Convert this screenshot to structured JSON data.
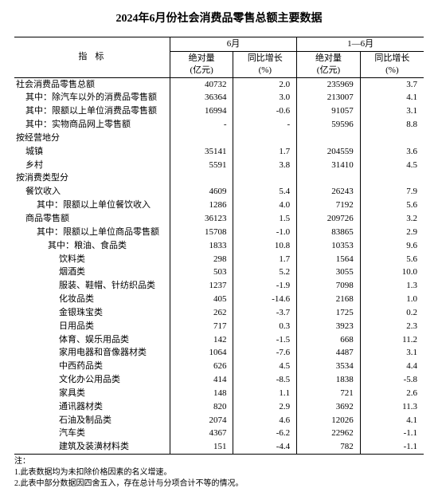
{
  "title": "2024年6月份社会消费品零售总额主要数据",
  "headers": {
    "indicator": "指标",
    "period1": "6月",
    "period2": "1—6月",
    "abs_label": "绝对量",
    "abs_unit": "(亿元)",
    "growth_label": "同比增长",
    "growth_unit": "(%)"
  },
  "rows": [
    {
      "indent": 0,
      "label": "社会消费品零售总额",
      "v1": "40732",
      "g1": "2.0",
      "v2": "235969",
      "g2": "3.7"
    },
    {
      "indent": 1,
      "label": "其中：除汽车以外的消费品零售额",
      "v1": "36364",
      "g1": "3.0",
      "v2": "213007",
      "g2": "4.1"
    },
    {
      "indent": 1,
      "label": "其中：限额以上单位消费品零售额",
      "v1": "16994",
      "g1": "-0.6",
      "v2": "91057",
      "g2": "3.1"
    },
    {
      "indent": 1,
      "label": "其中：实物商品网上零售额",
      "v1": "-",
      "g1": "-",
      "v2": "59596",
      "g2": "8.8"
    },
    {
      "indent": 0,
      "label": "按经营地分",
      "v1": "",
      "g1": "",
      "v2": "",
      "g2": ""
    },
    {
      "indent": 1,
      "label": "城镇",
      "v1": "35141",
      "g1": "1.7",
      "v2": "204559",
      "g2": "3.6"
    },
    {
      "indent": 1,
      "label": "乡村",
      "v1": "5591",
      "g1": "3.8",
      "v2": "31410",
      "g2": "4.5"
    },
    {
      "indent": 0,
      "label": "按消费类型分",
      "v1": "",
      "g1": "",
      "v2": "",
      "g2": ""
    },
    {
      "indent": 1,
      "label": "餐饮收入",
      "v1": "4609",
      "g1": "5.4",
      "v2": "26243",
      "g2": "7.9"
    },
    {
      "indent": 2,
      "label": "其中：限额以上单位餐饮收入",
      "v1": "1286",
      "g1": "4.0",
      "v2": "7192",
      "g2": "5.6"
    },
    {
      "indent": 1,
      "label": "商品零售额",
      "v1": "36123",
      "g1": "1.5",
      "v2": "209726",
      "g2": "3.2"
    },
    {
      "indent": 2,
      "label": "其中：限额以上单位商品零售额",
      "v1": "15708",
      "g1": "-1.0",
      "v2": "83865",
      "g2": "2.9"
    },
    {
      "indent": 3,
      "label": "其中：粮油、食品类",
      "v1": "1833",
      "g1": "10.8",
      "v2": "10353",
      "g2": "9.6"
    },
    {
      "indent": 4,
      "label": "饮料类",
      "v1": "298",
      "g1": "1.7",
      "v2": "1564",
      "g2": "5.6"
    },
    {
      "indent": 4,
      "label": "烟酒类",
      "v1": "503",
      "g1": "5.2",
      "v2": "3055",
      "g2": "10.0"
    },
    {
      "indent": 4,
      "label": "服装、鞋帽、针纺织品类",
      "v1": "1237",
      "g1": "-1.9",
      "v2": "7098",
      "g2": "1.3"
    },
    {
      "indent": 4,
      "label": "化妆品类",
      "v1": "405",
      "g1": "-14.6",
      "v2": "2168",
      "g2": "1.0"
    },
    {
      "indent": 4,
      "label": "金银珠宝类",
      "v1": "262",
      "g1": "-3.7",
      "v2": "1725",
      "g2": "0.2"
    },
    {
      "indent": 4,
      "label": "日用品类",
      "v1": "717",
      "g1": "0.3",
      "v2": "3923",
      "g2": "2.3"
    },
    {
      "indent": 4,
      "label": "体育、娱乐用品类",
      "v1": "142",
      "g1": "-1.5",
      "v2": "668",
      "g2": "11.2"
    },
    {
      "indent": 4,
      "label": "家用电器和音像器材类",
      "v1": "1064",
      "g1": "-7.6",
      "v2": "4487",
      "g2": "3.1"
    },
    {
      "indent": 4,
      "label": "中西药品类",
      "v1": "626",
      "g1": "4.5",
      "v2": "3534",
      "g2": "4.4"
    },
    {
      "indent": 4,
      "label": "文化办公用品类",
      "v1": "414",
      "g1": "-8.5",
      "v2": "1838",
      "g2": "-5.8"
    },
    {
      "indent": 4,
      "label": "家具类",
      "v1": "148",
      "g1": "1.1",
      "v2": "721",
      "g2": "2.6"
    },
    {
      "indent": 4,
      "label": "通讯器材类",
      "v1": "820",
      "g1": "2.9",
      "v2": "3692",
      "g2": "11.3"
    },
    {
      "indent": 4,
      "label": "石油及制品类",
      "v1": "2074",
      "g1": "4.6",
      "v2": "12026",
      "g2": "4.1"
    },
    {
      "indent": 4,
      "label": "汽车类",
      "v1": "4367",
      "g1": "-6.2",
      "v2": "22962",
      "g2": "-1.1"
    },
    {
      "indent": 4,
      "label": "建筑及装潢材料类",
      "v1": "151",
      "g1": "-4.4",
      "v2": "782",
      "g2": "-1.1"
    }
  ],
  "notes": {
    "heading": "注：",
    "n1": "1.此表数据均为未扣除价格因素的名义增速。",
    "n2": "2.此表中部分数据因四舍五入，存在总计与分项合计不等的情况。"
  }
}
